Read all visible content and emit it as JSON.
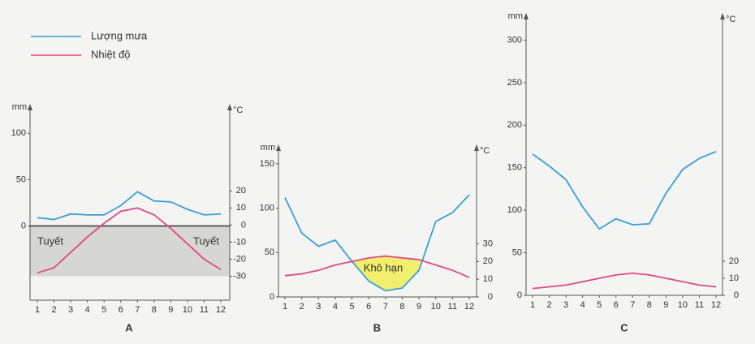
{
  "chart_data": [
    {
      "type": "line",
      "title": "A",
      "y_label": "mm",
      "y2_label": "°C",
      "categories": [
        "1",
        "2",
        "3",
        "4",
        "5",
        "6",
        "7",
        "8",
        "9",
        "10",
        "11",
        "12"
      ],
      "series": [
        {
          "name": "Lượng mưa",
          "color": "#3a9fd6",
          "values": [
            9,
            7,
            13,
            12,
            12,
            22,
            37,
            27,
            26,
            18,
            12,
            13
          ]
        },
        {
          "name": "Nhiệt độ",
          "color": "#df4a80",
          "axis": "y2",
          "values": [
            -28,
            -25,
            -16,
            -7,
            1,
            8,
            10,
            6,
            -2,
            -11,
            -20,
            -26
          ]
        }
      ],
      "ylim": [
        -80,
        130
      ],
      "yticks": [
        0,
        50,
        100
      ],
      "y2lim": [
        -44,
        70
      ],
      "y2ticks": [
        -30,
        -20,
        -10,
        0,
        10,
        20
      ],
      "shade_color": "#d6d6d4",
      "annotations": [
        "Tuyết",
        "Tuyết"
      ]
    },
    {
      "type": "line",
      "title": "B",
      "y_label": "mm",
      "y2_label": "°C",
      "categories": [
        "1",
        "2",
        "3",
        "4",
        "5",
        "6",
        "7",
        "8",
        "9",
        "10",
        "11",
        "12"
      ],
      "series": [
        {
          "color": "#3a9fd6",
          "values": [
            112,
            72,
            57,
            64,
            40,
            18,
            7,
            10,
            30,
            85,
            95,
            115
          ]
        },
        {
          "color": "#df4a80",
          "axis": "y2",
          "values": [
            12,
            13,
            15,
            18,
            20,
            22,
            23,
            22,
            21,
            18,
            15,
            11
          ]
        }
      ],
      "ylim": [
        0,
        170
      ],
      "yticks": [
        0,
        50,
        100,
        150
      ],
      "y2lim": [
        0,
        85
      ],
      "y2ticks": [
        0,
        10,
        20,
        30
      ],
      "dry_fill_color": "#f2ef6e",
      "annotations": [
        "Khô hạn"
      ]
    },
    {
      "type": "line",
      "title": "C",
      "y_label": "mm",
      "y2_label": "°C",
      "categories": [
        "1",
        "2",
        "3",
        "4",
        "5",
        "6",
        "7",
        "8",
        "9",
        "10",
        "11",
        "12"
      ],
      "series": [
        {
          "color": "#3a9fd6",
          "values": [
            166,
            152,
            136,
            104,
            78,
            90,
            83,
            84,
            120,
            148,
            161,
            169
          ]
        },
        {
          "color": "#df4a80",
          "axis": "y2",
          "values": [
            4,
            5,
            6,
            8,
            10,
            12,
            13,
            12,
            10,
            8,
            6,
            5
          ]
        }
      ],
      "ylim": [
        0,
        330
      ],
      "yticks": [
        0,
        50,
        100,
        150,
        200,
        250,
        300
      ],
      "y2lim": [
        0,
        165
      ],
      "y2ticks": [
        0,
        10,
        20
      ]
    }
  ]
}
